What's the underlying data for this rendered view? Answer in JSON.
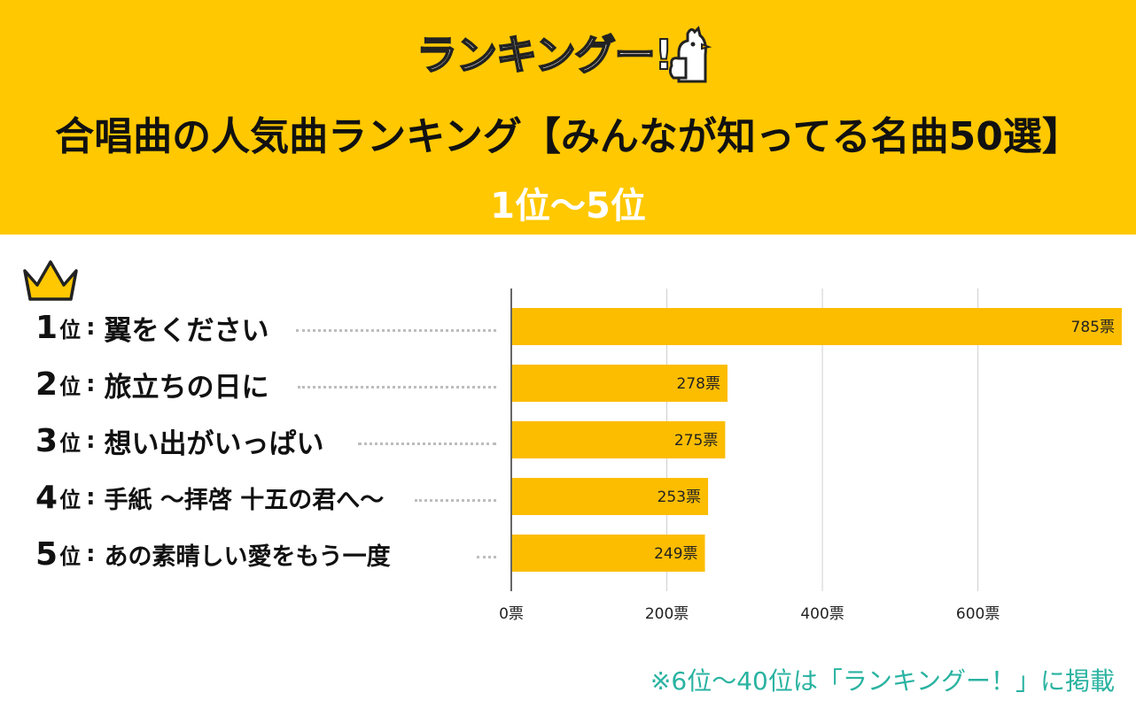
{
  "header": {
    "logo_text": "ランキングー!",
    "title": "合唱曲の人気曲ランキング【みんなが知ってる名曲50選】",
    "subtitle": "1位〜5位"
  },
  "colors": {
    "header_bg": "#ffc800",
    "bar": "#fcbd00",
    "footnote": "#2ab3a1",
    "crown": "#ffc800"
  },
  "icons": {
    "crown": "crown-icon",
    "mascot": "chicken-mascot-icon"
  },
  "chart_data": {
    "type": "bar",
    "orientation": "horizontal",
    "rank_suffix": "位",
    "categories": [
      {
        "rank": "1",
        "name": "翼をください"
      },
      {
        "rank": "2",
        "name": "旅立ちの日に"
      },
      {
        "rank": "3",
        "name": "想い出がいっぱい"
      },
      {
        "rank": "4",
        "name": "手紙 〜拝啓 十五の君へ〜"
      },
      {
        "rank": "5",
        "name": "あの素晴しい愛をもう一度"
      }
    ],
    "values": [
      785,
      278,
      275,
      253,
      249
    ],
    "value_labels": [
      "785票",
      "278票",
      "275票",
      "253票",
      "249票"
    ],
    "xlim": [
      0,
      785
    ],
    "xticks": [
      0,
      200,
      400,
      600
    ],
    "xtick_labels": [
      "0票",
      "200票",
      "400票",
      "600票"
    ],
    "grid": true
  },
  "footnote": "※6位〜40位は「ランキングー！」に掲載"
}
